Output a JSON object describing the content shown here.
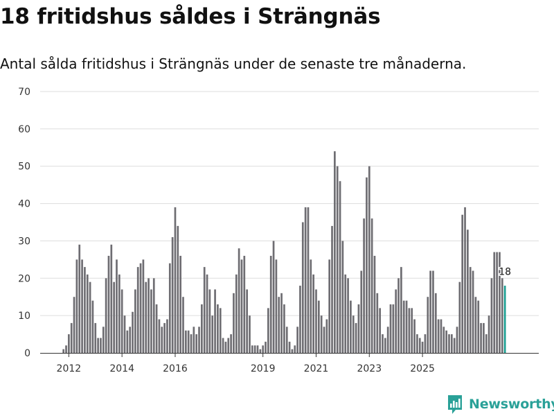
{
  "title": "18 fritidshus såldes i Strängnäs",
  "subtitle": "Antal sålda fritidshus i Strängnäs under de senaste tre månaderna.",
  "brand": {
    "name": "Newsworthy",
    "icon": "newsworthy-logo-icon",
    "color": "#2aa198"
  },
  "chart_data": {
    "type": "bar",
    "y_ticks": [
      0,
      10,
      20,
      30,
      40,
      50,
      60,
      70
    ],
    "ylim": [
      0,
      70
    ],
    "x_tick_labels": [
      {
        "label": "2012",
        "index": 3
      },
      {
        "label": "2014",
        "index": 23
      },
      {
        "label": "2016",
        "index": 43
      },
      {
        "label": "2019",
        "index": 76
      },
      {
        "label": "2021",
        "index": 96
      },
      {
        "label": "2023",
        "index": 116
      },
      {
        "label": "2025",
        "index": 136
      }
    ],
    "bar_color": "#6e6d72",
    "highlight_color": "#1a9e91",
    "highlight_label": "18",
    "values": [
      0,
      1,
      2,
      5,
      8,
      15,
      25,
      29,
      25,
      23,
      21,
      19,
      14,
      8,
      4,
      4,
      7,
      20,
      26,
      29,
      19,
      25,
      21,
      17,
      10,
      6,
      7,
      11,
      17,
      23,
      24,
      25,
      19,
      20,
      17,
      20,
      13,
      9,
      7,
      8,
      9,
      24,
      31,
      39,
      34,
      26,
      15,
      6,
      6,
      5,
      7,
      5,
      7,
      13,
      23,
      21,
      17,
      10,
      17,
      13,
      12,
      4,
      3,
      4,
      5,
      16,
      21,
      28,
      25,
      26,
      17,
      10,
      2,
      2,
      2,
      1,
      2,
      3,
      12,
      26,
      30,
      25,
      15,
      16,
      13,
      7,
      3,
      1,
      2,
      7,
      18,
      35,
      39,
      39,
      25,
      21,
      17,
      14,
      10,
      7,
      9,
      25,
      34,
      54,
      50,
      46,
      30,
      21,
      20,
      14,
      10,
      8,
      13,
      22,
      36,
      47,
      50,
      36,
      26,
      16,
      12,
      5,
      4,
      7,
      13,
      13,
      17,
      20,
      23,
      14,
      14,
      12,
      12,
      9,
      5,
      4,
      3,
      5,
      15,
      22,
      22,
      16,
      9,
      9,
      7,
      6,
      5,
      5,
      4,
      7,
      19,
      37,
      39,
      33,
      23,
      22,
      15,
      14,
      8,
      8,
      5,
      10,
      20,
      27,
      27,
      27,
      20,
      18
    ]
  }
}
